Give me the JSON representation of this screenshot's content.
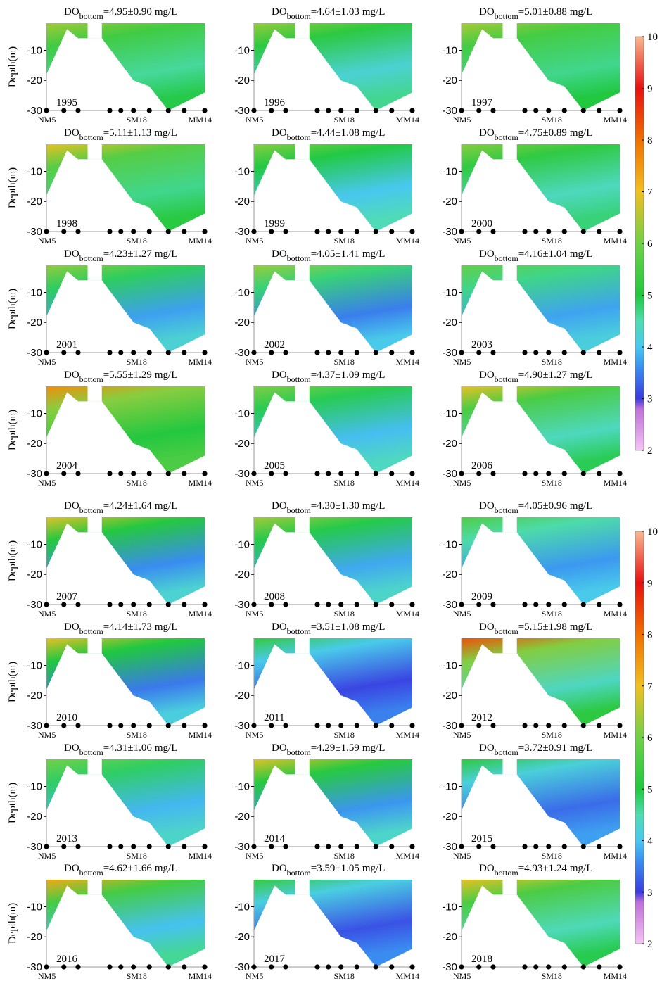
{
  "chart_data": {
    "type": "contour-grid",
    "title_symbol": "DO",
    "title_subscript": "bottom",
    "title_eq": "=",
    "title_pm": "±",
    "title_unit": "mg/L",
    "ylabel": "Depth(m)",
    "ylim": [
      -30,
      -1
    ],
    "yticks": [
      -10,
      -20,
      -30
    ],
    "stations": [
      "NM5",
      "SM18",
      "MM14"
    ],
    "colorbar": {
      "lim": [
        2,
        10
      ],
      "ticks": [
        2,
        3,
        4,
        5,
        6,
        7,
        8,
        9,
        10
      ]
    },
    "panels": [
      {
        "year": "1995",
        "mean": 4.95,
        "sd": {
          "value": 0.9,
          "label": "0.90"
        }
      },
      {
        "year": "1996",
        "mean": 4.64,
        "sd": 1.03
      },
      {
        "year": "1997",
        "mean": 5.01,
        "sd": 0.88
      },
      {
        "year": "1998",
        "mean": 5.11,
        "sd": 1.13
      },
      {
        "year": "1999",
        "mean": 4.44,
        "sd": 1.08
      },
      {
        "year": "2000",
        "mean": 4.75,
        "sd": 0.89
      },
      {
        "year": "2001",
        "mean": 4.23,
        "sd": 1.27
      },
      {
        "year": "2002",
        "mean": 4.05,
        "sd": 1.41
      },
      {
        "year": "2003",
        "mean": 4.16,
        "sd": 1.04
      },
      {
        "year": "2004",
        "mean": 5.55,
        "sd": 1.29
      },
      {
        "year": "2005",
        "mean": 4.37,
        "sd": 1.09
      },
      {
        "year": "2006",
        "mean": {
          "value": 4.9,
          "label": "4.90"
        },
        "sd": 1.27
      },
      {
        "year": "2007",
        "mean": 4.24,
        "sd": 1.64
      },
      {
        "year": "2008",
        "mean": {
          "value": 4.3,
          "label": "4.30"
        },
        "sd": {
          "value": 1.3,
          "label": "1.30"
        }
      },
      {
        "year": "2009",
        "mean": 4.05,
        "sd": 0.96
      },
      {
        "year": "2010",
        "mean": 4.14,
        "sd": 1.73
      },
      {
        "year": "2011",
        "mean": 3.51,
        "sd": 1.08
      },
      {
        "year": "2012",
        "mean": 5.15,
        "sd": 1.98
      },
      {
        "year": "2013",
        "mean": 4.31,
        "sd": 1.06
      },
      {
        "year": "2014",
        "mean": 4.29,
        "sd": 1.59
      },
      {
        "year": "2015",
        "mean": 3.72,
        "sd": 0.91
      },
      {
        "year": "2016",
        "mean": 4.62,
        "sd": 1.66
      },
      {
        "year": "2017",
        "mean": 3.59,
        "sd": 1.05
      },
      {
        "year": "2018",
        "mean": 4.93,
        "sd": 1.24
      }
    ]
  }
}
